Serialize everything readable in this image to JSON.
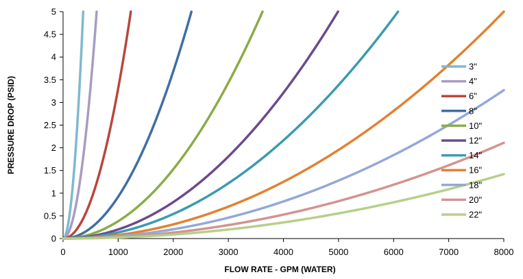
{
  "chart_data": {
    "type": "line",
    "title": "",
    "xlabel": "FLOW RATE - GPM (WATER)",
    "ylabel": "PRESSURE DROP (PSID)",
    "xlim": [
      0,
      8000
    ],
    "ylim": [
      0,
      5
    ],
    "xticks": [
      "0",
      "1000",
      "2000",
      "3000",
      "4000",
      "5000",
      "6000",
      "7000",
      "8000"
    ],
    "yticks": [
      "0",
      "0.5",
      "1",
      "1.5",
      "2",
      "2.5",
      "3",
      "3.5",
      "4",
      "4.5",
      "5"
    ],
    "grid": false,
    "legend_position": "right",
    "curve_shape": "quadratic",
    "series": [
      {
        "name": "3\"",
        "color": "#7fb8cf",
        "x_at_max": 365,
        "points": [
          [
            0,
            0
          ],
          [
            200,
            1.5
          ],
          [
            365,
            5
          ]
        ]
      },
      {
        "name": "4\"",
        "color": "#a89bc3",
        "x_at_max": 610,
        "points": [
          [
            0,
            0
          ],
          [
            300,
            1.2
          ],
          [
            610,
            5
          ]
        ]
      },
      {
        "name": "6\"",
        "color": "#b8473d",
        "x_at_max": 1230,
        "points": [
          [
            0,
            0
          ],
          [
            600,
            1.2
          ],
          [
            1230,
            5
          ]
        ]
      },
      {
        "name": "8\"",
        "color": "#3f6ea3",
        "x_at_max": 2330,
        "points": [
          [
            0,
            0
          ],
          [
            1500,
            2.07
          ],
          [
            2330,
            5
          ]
        ]
      },
      {
        "name": "10\"",
        "color": "#8bab46",
        "x_at_max": 3620,
        "points": [
          [
            0,
            0
          ],
          [
            2000,
            1.53
          ],
          [
            3620,
            5
          ]
        ]
      },
      {
        "name": "12\"",
        "color": "#6b4a8c",
        "x_at_max": 4990,
        "points": [
          [
            0,
            0
          ],
          [
            3000,
            1.81
          ],
          [
            4990,
            5
          ]
        ]
      },
      {
        "name": "14\"",
        "color": "#3a9bb0",
        "x_at_max": 6080,
        "points": [
          [
            0,
            0
          ],
          [
            4000,
            2.16
          ],
          [
            6080,
            5
          ]
        ]
      },
      {
        "name": "16\"",
        "color": "#e2812f",
        "x_at_max": 8000,
        "points": [
          [
            0,
            0
          ],
          [
            4000,
            1.25
          ],
          [
            8000,
            5
          ]
        ]
      },
      {
        "name": "18\"",
        "color": "#92a9d8",
        "y_at_max_x": 3.27,
        "points": [
          [
            0,
            0
          ],
          [
            4000,
            0.82
          ],
          [
            8000,
            3.27
          ]
        ]
      },
      {
        "name": "20\"",
        "color": "#d39390",
        "y_at_max_x": 2.11,
        "points": [
          [
            0,
            0
          ],
          [
            4000,
            0.53
          ],
          [
            8000,
            2.11
          ]
        ]
      },
      {
        "name": "22\"",
        "color": "#b5d089",
        "y_at_max_x": 1.42,
        "points": [
          [
            0,
            0
          ],
          [
            4000,
            0.36
          ],
          [
            8000,
            1.42
          ]
        ]
      }
    ]
  }
}
